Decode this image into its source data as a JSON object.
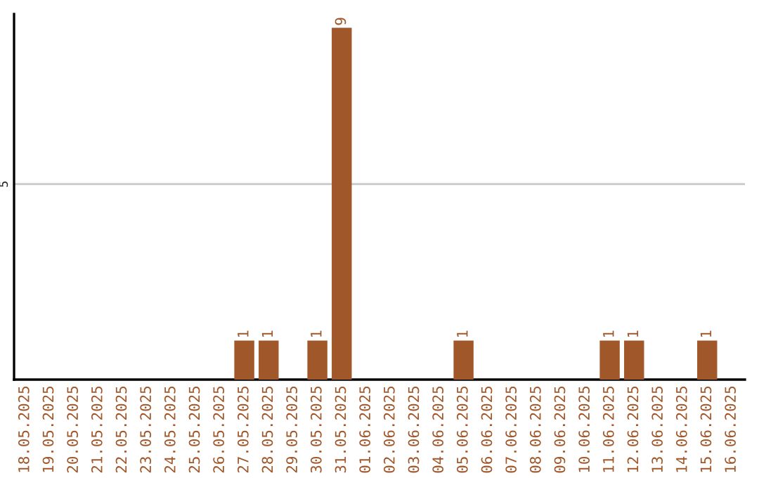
{
  "chart_data": {
    "type": "bar",
    "categories": [
      "18.05.2025",
      "19.05.2025",
      "20.05.2025",
      "21.05.2025",
      "22.05.2025",
      "23.05.2025",
      "24.05.2025",
      "25.05.2025",
      "26.05.2025",
      "27.05.2025",
      "28.05.2025",
      "29.05.2025",
      "30.05.2025",
      "31.05.2025",
      "01.06.2025",
      "02.06.2025",
      "03.06.2025",
      "04.06.2025",
      "05.06.2025",
      "06.06.2025",
      "07.06.2025",
      "08.06.2025",
      "09.06.2025",
      "10.06.2025",
      "11.06.2025",
      "12.06.2025",
      "13.06.2025",
      "14.06.2025",
      "15.06.2025",
      "16.06.2025"
    ],
    "values": [
      0,
      0,
      0,
      0,
      0,
      0,
      0,
      0,
      0,
      1,
      1,
      0,
      1,
      9,
      0,
      0,
      0,
      0,
      1,
      0,
      0,
      0,
      0,
      0,
      1,
      1,
      0,
      0,
      1,
      0
    ],
    "value_labels": [
      null,
      null,
      null,
      null,
      null,
      null,
      null,
      null,
      null,
      "1",
      "1",
      null,
      "1",
      "9",
      null,
      null,
      null,
      null,
      "1",
      null,
      null,
      null,
      null,
      null,
      "1",
      "1",
      null,
      null,
      "1",
      null
    ],
    "color": "#a0572a",
    "ylim": [
      0,
      9.35
    ],
    "yticks": [
      5
    ],
    "grid": "y"
  }
}
